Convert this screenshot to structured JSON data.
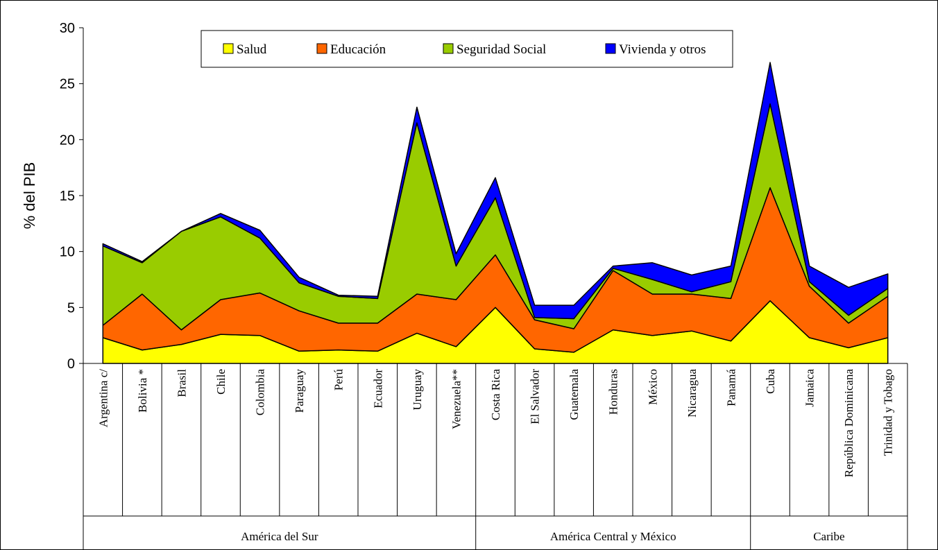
{
  "chart_data": {
    "type": "area",
    "stacked": true,
    "title": "",
    "ylabel": "% del PIB",
    "ylim": [
      0,
      30
    ],
    "yticks": [
      0,
      5,
      10,
      15,
      20,
      25,
      30
    ],
    "legend_position": "top-center",
    "grid": false,
    "categories": [
      "Argentina c/",
      "Bolivia *",
      "Brasil",
      "Chile",
      "Colombia",
      "Paraguay",
      "Perú",
      "Ecuador",
      "Uruguay",
      "Venezuela**",
      "Costa Rica",
      "El Salvador",
      "Guatemala",
      "Honduras",
      "México",
      "Nicaragua",
      "Panamá",
      "Cuba",
      "Jamaica",
      "República Dominicana",
      "Trinidad y Tobago"
    ],
    "groups": [
      {
        "label": "América del Sur",
        "count": 10
      },
      {
        "label": "América Central y México",
        "count": 7
      },
      {
        "label": "Caribe",
        "count": 4
      }
    ],
    "series": [
      {
        "name": "Salud",
        "color": "#ffff00",
        "values": [
          2.3,
          1.2,
          1.7,
          2.6,
          2.5,
          1.1,
          1.2,
          1.1,
          2.7,
          1.5,
          5.0,
          1.3,
          1.0,
          3.0,
          2.5,
          2.9,
          2.0,
          5.6,
          2.3,
          1.4,
          2.3
        ]
      },
      {
        "name": "Educación",
        "color": "#ff6600",
        "values": [
          1.1,
          5.0,
          1.3,
          3.1,
          3.8,
          3.6,
          2.4,
          2.5,
          3.5,
          4.2,
          4.7,
          2.6,
          2.1,
          5.3,
          3.7,
          3.3,
          3.8,
          10.1,
          4.6,
          2.2,
          3.7
        ]
      },
      {
        "name": "Seguridad Social",
        "color": "#99cc00",
        "values": [
          7.1,
          2.8,
          8.8,
          7.4,
          4.9,
          2.5,
          2.4,
          2.2,
          15.3,
          3.0,
          5.1,
          0.2,
          0.9,
          0.2,
          1.3,
          0.2,
          1.5,
          7.5,
          0.4,
          0.7,
          0.7
        ]
      },
      {
        "name": "Vivienda y otros",
        "color": "#0000ff",
        "values": [
          0.2,
          0.1,
          0.0,
          0.3,
          0.7,
          0.5,
          0.1,
          0.2,
          1.4,
          1.1,
          1.8,
          1.1,
          1.2,
          0.2,
          1.5,
          1.5,
          1.4,
          3.7,
          1.4,
          2.5,
          1.3
        ]
      }
    ]
  }
}
